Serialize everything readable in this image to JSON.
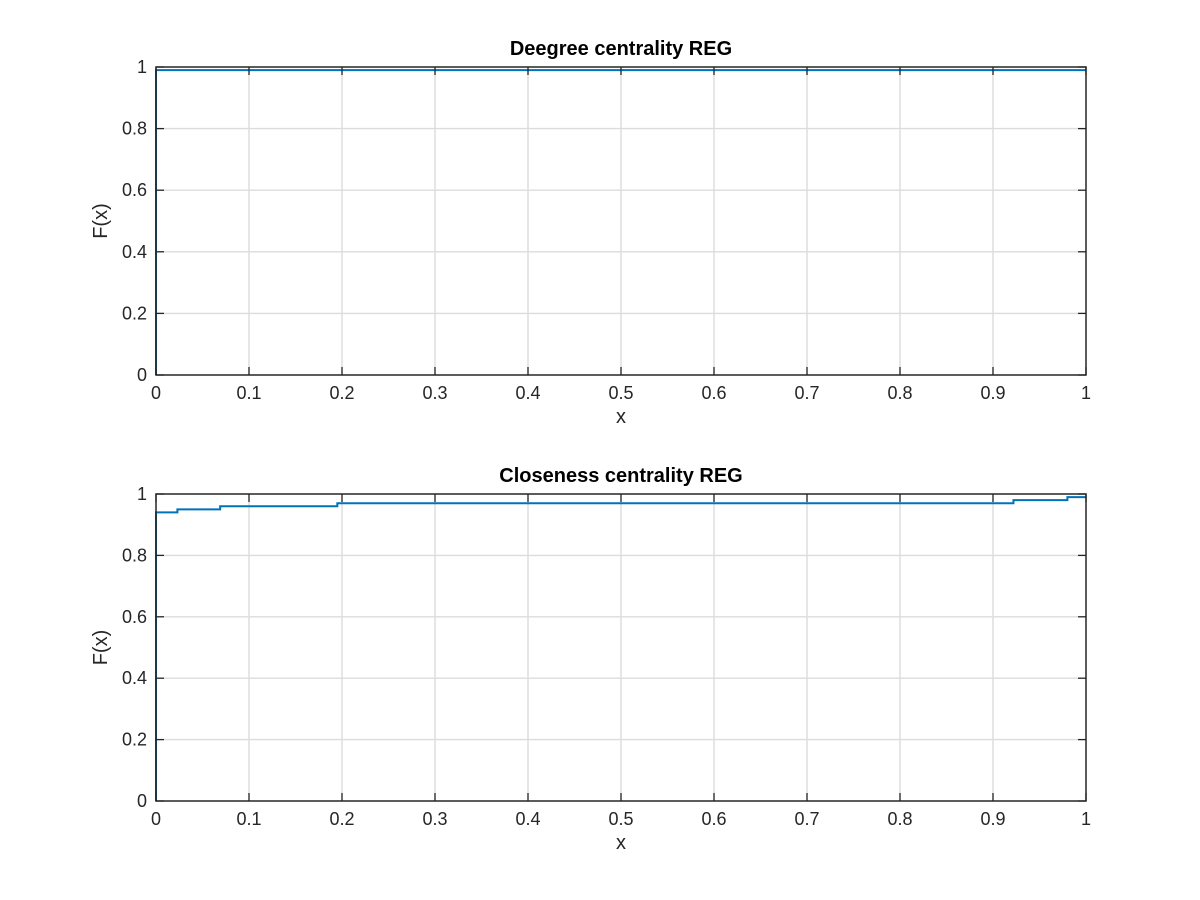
{
  "colors": {
    "series": "#0072BD",
    "axis": "#262626",
    "grid": "#dcdcdc"
  },
  "chart_data": [
    {
      "type": "line",
      "title": "Deegree centrality REG",
      "xlabel": "x",
      "ylabel": "F(x)",
      "xlim": [
        0,
        1
      ],
      "ylim": [
        0,
        1
      ],
      "xticks": [
        0,
        0.1,
        0.2,
        0.3,
        0.4,
        0.5,
        0.6,
        0.7,
        0.8,
        0.9,
        1
      ],
      "xtick_labels": [
        "0",
        "0.1",
        "0.2",
        "0.3",
        "0.4",
        "0.5",
        "0.6",
        "0.7",
        "0.8",
        "0.9",
        "1"
      ],
      "yticks": [
        0,
        0.2,
        0.4,
        0.6,
        0.8,
        1
      ],
      "ytick_labels": [
        "0",
        "0.2",
        "0.4",
        "0.6",
        "0.8",
        "1"
      ],
      "grid": true,
      "step": true,
      "series": [
        {
          "x": [
            0,
            0,
            1
          ],
          "y": [
            0,
            0.99,
            0.99
          ]
        }
      ]
    },
    {
      "type": "line",
      "title": "Closeness centrality REG",
      "xlabel": "x",
      "ylabel": "F(x)",
      "xlim": [
        0,
        1
      ],
      "ylim": [
        0,
        1
      ],
      "xticks": [
        0,
        0.1,
        0.2,
        0.3,
        0.4,
        0.5,
        0.6,
        0.7,
        0.8,
        0.9,
        1
      ],
      "xtick_labels": [
        "0",
        "0.1",
        "0.2",
        "0.3",
        "0.4",
        "0.5",
        "0.6",
        "0.7",
        "0.8",
        "0.9",
        "1"
      ],
      "yticks": [
        0,
        0.2,
        0.4,
        0.6,
        0.8,
        1
      ],
      "ytick_labels": [
        "0",
        "0.2",
        "0.4",
        "0.6",
        "0.8",
        "1"
      ],
      "grid": true,
      "step": true,
      "series": [
        {
          "x": [
            0,
            0,
            0.023,
            0.069,
            0.195,
            0.922,
            0.98,
            1
          ],
          "y": [
            0,
            0.94,
            0.95,
            0.96,
            0.97,
            0.98,
            0.99,
            0.99
          ]
        }
      ]
    }
  ]
}
